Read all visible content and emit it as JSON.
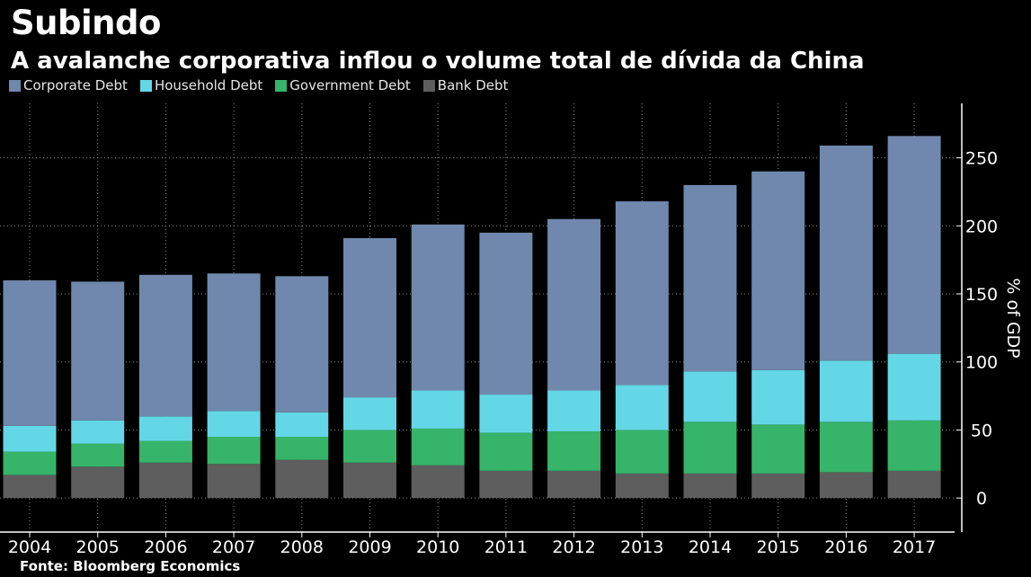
{
  "title": "Subindo",
  "subtitle": "A avalanche corporativa inflou o volume total de dívida da China",
  "source": "Fonte: Bloomberg Economics",
  "colors": {
    "corporate": "#7088ad",
    "household": "#64d7e6",
    "government": "#36b46a",
    "bank": "#5e5e5e"
  },
  "chart_data": {
    "type": "bar",
    "stacked": true,
    "categories": [
      "2004",
      "2005",
      "2006",
      "2007",
      "2008",
      "2009",
      "2010",
      "2011",
      "2012",
      "2013",
      "2014",
      "2015",
      "2016",
      "2017"
    ],
    "series": [
      {
        "name": "Bank Debt",
        "key": "bank",
        "values": [
          17,
          23,
          26,
          25,
          28,
          26,
          24,
          20,
          20,
          18,
          18,
          18,
          19,
          20
        ]
      },
      {
        "name": "Government Debt",
        "key": "government",
        "values": [
          17,
          17,
          16,
          20,
          17,
          24,
          27,
          28,
          29,
          32,
          38,
          36,
          37,
          37
        ]
      },
      {
        "name": "Household Debt",
        "key": "household",
        "values": [
          19,
          17,
          18,
          19,
          18,
          24,
          28,
          28,
          30,
          33,
          37,
          40,
          45,
          49
        ]
      },
      {
        "name": "Corporate Debt",
        "key": "corporate",
        "values": [
          107,
          102,
          104,
          101,
          100,
          117,
          122,
          119,
          126,
          135,
          137,
          146,
          158,
          160
        ]
      }
    ],
    "legend_order": [
      "Corporate Debt",
      "Household Debt",
      "Government Debt",
      "Bank Debt"
    ],
    "ylabel": "% of GDP",
    "yticks": [
      0,
      50,
      100,
      150,
      200,
      250
    ],
    "ylim": [
      -25,
      290
    ],
    "grid": true,
    "legend": "top-left",
    "y_axis_side": "right"
  }
}
